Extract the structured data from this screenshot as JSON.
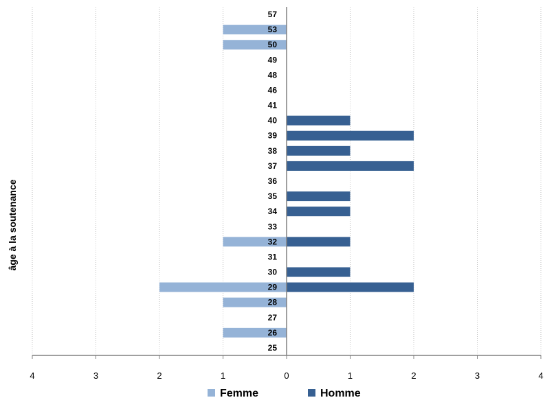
{
  "chart_data": {
    "type": "bar",
    "orientation": "horizontal-butterfly",
    "ylabel": "âge à la soutenance",
    "categories": [
      "57",
      "53",
      "50",
      "49",
      "48",
      "46",
      "41",
      "40",
      "39",
      "38",
      "37",
      "36",
      "35",
      "34",
      "33",
      "32",
      "31",
      "30",
      "29",
      "28",
      "27",
      "26",
      "25"
    ],
    "series": [
      {
        "name": "Femme",
        "color": "#95b3d7",
        "direction": "left",
        "values": [
          0,
          1,
          1,
          0,
          0,
          0,
          0,
          0,
          0,
          0,
          0,
          0,
          0,
          0,
          0,
          1,
          0,
          0,
          2,
          1,
          0,
          1,
          0
        ]
      },
      {
        "name": "Homme",
        "color": "#376092",
        "direction": "right",
        "values": [
          0,
          0,
          0,
          0,
          0,
          0,
          0,
          1,
          2,
          1,
          2,
          0,
          1,
          1,
          0,
          1,
          0,
          1,
          2,
          0,
          0,
          0,
          0
        ]
      }
    ],
    "xlim": [
      -4,
      4
    ],
    "x_tick_labels": [
      "4",
      "3",
      "2",
      "1",
      "0",
      "1",
      "2",
      "3",
      "4"
    ],
    "grid": "vertical-dotted",
    "legend": "bottom",
    "colors": {
      "gridline": "#bfbfbf",
      "axis": "#808080"
    }
  }
}
